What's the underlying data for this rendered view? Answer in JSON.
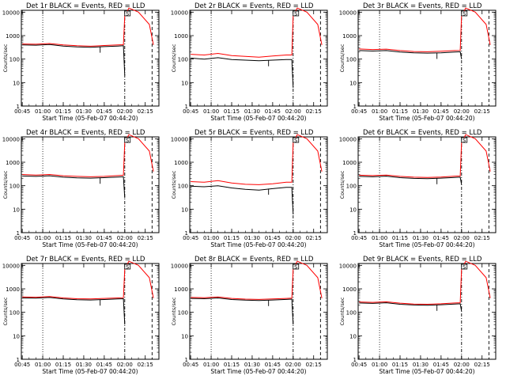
{
  "panels_common": {
    "xlabel": "Start Time (05-Feb-07 00:44:20)",
    "ylabel": "Counts/sec",
    "x_ticks": [
      "00:45",
      "01:00",
      "01:15",
      "01:30",
      "01:45",
      "02:00",
      "02:15"
    ],
    "y_ticks": [
      "1",
      "10",
      "100",
      "1000",
      "10000"
    ]
  },
  "chart_data": [
    {
      "type": "line",
      "title": "Det 1r BLACK = Events, RED = LLD",
      "xlabel": "Start Time (05-Feb-07 00:44:20)",
      "ylabel": "Counts/sec",
      "yscale": "log",
      "ylim": [
        1,
        10000
      ],
      "xlim": [
        "00:44",
        "02:25"
      ],
      "vlines": {
        "dotted": "01:00",
        "dash_dot": "02:00",
        "dashed": "02:20"
      },
      "marker_label": "S",
      "marker_time": "02:02",
      "series": [
        {
          "name": "Events",
          "color": "#000000",
          "x": [
            "00:45",
            "00:55",
            "01:05",
            "01:15",
            "01:25",
            "01:35",
            "01:45",
            "01:55",
            "01:59",
            "02:00"
          ],
          "values": [
            400,
            390,
            420,
            360,
            330,
            320,
            340,
            360,
            370,
            20
          ]
        },
        {
          "name": "LLD",
          "color": "#ff0000",
          "x": [
            "00:45",
            "00:55",
            "01:05",
            "01:15",
            "01:25",
            "01:35",
            "01:45",
            "01:55",
            "01:59",
            "02:00",
            "02:03",
            "02:10",
            "02:18",
            "02:21"
          ],
          "values": [
            440,
            430,
            460,
            400,
            370,
            355,
            380,
            400,
            410,
            7000,
            15000,
            10000,
            3000,
            400
          ]
        }
      ]
    },
    {
      "type": "line",
      "title": "Det 2r BLACK = Events, RED = LLD",
      "xlabel": "Start Time (05-Feb-07 00:44:20)",
      "ylabel": "Counts/sec",
      "yscale": "log",
      "ylim": [
        1,
        10000
      ],
      "xlim": [
        "00:44",
        "02:25"
      ],
      "vlines": {
        "dotted": "01:00",
        "dash_dot": "02:00",
        "dashed": "02:20"
      },
      "marker_label": "S",
      "marker_time": "02:02",
      "series": [
        {
          "name": "Events",
          "color": "#000000",
          "x": [
            "00:45",
            "00:55",
            "01:05",
            "01:15",
            "01:25",
            "01:35",
            "01:45",
            "01:55",
            "01:59",
            "02:00"
          ],
          "values": [
            110,
            100,
            115,
            95,
            90,
            85,
            90,
            95,
            95,
            6
          ]
        },
        {
          "name": "LLD",
          "color": "#ff0000",
          "x": [
            "00:45",
            "00:55",
            "01:05",
            "01:15",
            "01:25",
            "01:35",
            "01:45",
            "01:55",
            "01:59",
            "02:00",
            "02:03",
            "02:10",
            "02:18",
            "02:21"
          ],
          "values": [
            160,
            150,
            175,
            140,
            130,
            120,
            135,
            150,
            150,
            7000,
            15000,
            10000,
            3000,
            400
          ]
        }
      ]
    },
    {
      "type": "line",
      "title": "Det 3r BLACK = Events, RED = LLD",
      "xlabel": "Start Time (05-Feb-07 00:44:20)",
      "ylabel": "Counts/sec",
      "yscale": "log",
      "ylim": [
        1,
        10000
      ],
      "xlim": [
        "00:44",
        "02:25"
      ],
      "vlines": {
        "dotted": "01:00",
        "dash_dot": "02:00",
        "dashed": "02:20"
      },
      "marker_label": "S",
      "marker_time": "02:02",
      "series": [
        {
          "name": "Events",
          "color": "#000000",
          "x": [
            "00:45",
            "00:55",
            "01:05",
            "01:15",
            "01:25",
            "01:35",
            "01:45",
            "01:55",
            "01:59",
            "02:00"
          ],
          "values": [
            230,
            220,
            230,
            200,
            185,
            180,
            185,
            200,
            205,
            100
          ]
        },
        {
          "name": "LLD",
          "color": "#ff0000",
          "x": [
            "00:45",
            "00:55",
            "01:05",
            "01:15",
            "01:25",
            "01:35",
            "01:45",
            "01:55",
            "01:59",
            "02:00",
            "02:03",
            "02:10",
            "02:18",
            "02:21"
          ],
          "values": [
            270,
            255,
            265,
            230,
            210,
            205,
            215,
            230,
            235,
            7000,
            15000,
            10000,
            3000,
            400
          ]
        }
      ]
    },
    {
      "type": "line",
      "title": "Det 4r BLACK = Events, RED = LLD",
      "xlabel": "Start Time (05-Feb-07 00:44:20)",
      "ylabel": "Counts/sec",
      "yscale": "log",
      "ylim": [
        1,
        10000
      ],
      "xlim": [
        "00:44",
        "02:25"
      ],
      "vlines": {
        "dotted": "01:00",
        "dash_dot": "02:00",
        "dashed": "02:20"
      },
      "marker_label": "S",
      "marker_time": "02:02",
      "series": [
        {
          "name": "Events",
          "color": "#000000",
          "x": [
            "00:45",
            "00:55",
            "01:05",
            "01:15",
            "01:25",
            "01:35",
            "01:45",
            "01:55",
            "01:59",
            "02:00"
          ],
          "values": [
            260,
            250,
            265,
            230,
            215,
            210,
            220,
            235,
            240,
            30
          ]
        },
        {
          "name": "LLD",
          "color": "#ff0000",
          "x": [
            "00:45",
            "00:55",
            "01:05",
            "01:15",
            "01:25",
            "01:35",
            "01:45",
            "01:55",
            "01:59",
            "02:00",
            "02:03",
            "02:10",
            "02:18",
            "02:21"
          ],
          "values": [
            300,
            285,
            300,
            265,
            250,
            240,
            250,
            270,
            280,
            7000,
            15000,
            10000,
            3000,
            400
          ]
        }
      ]
    },
    {
      "type": "line",
      "title": "Det 5r BLACK = Events, RED = LLD",
      "xlabel": "Start Time (05-Feb-07 00:44:20)",
      "ylabel": "Counts/sec",
      "yscale": "log",
      "ylim": [
        1,
        10000
      ],
      "xlim": [
        "00:44",
        "02:25"
      ],
      "vlines": {
        "dotted": "01:00",
        "dash_dot": "02:00",
        "dashed": "02:20"
      },
      "marker_label": "S",
      "marker_time": "02:02",
      "series": [
        {
          "name": "Events",
          "color": "#000000",
          "x": [
            "00:45",
            "00:55",
            "01:05",
            "01:15",
            "01:25",
            "01:35",
            "01:45",
            "01:55",
            "01:59",
            "02:00"
          ],
          "values": [
            95,
            90,
            100,
            80,
            70,
            65,
            75,
            85,
            85,
            6
          ]
        },
        {
          "name": "LLD",
          "color": "#ff0000",
          "x": [
            "00:45",
            "00:55",
            "01:05",
            "01:15",
            "01:25",
            "01:35",
            "01:45",
            "01:55",
            "01:59",
            "02:00",
            "02:03",
            "02:10",
            "02:18",
            "02:21"
          ],
          "values": [
            150,
            140,
            165,
            130,
            115,
            110,
            120,
            140,
            140,
            7000,
            15000,
            10000,
            3000,
            400
          ]
        }
      ]
    },
    {
      "type": "line",
      "title": "Det 6r BLACK = Events, RED = LLD",
      "xlabel": "Start Time (05-Feb-07 00:44:20)",
      "ylabel": "Counts/sec",
      "yscale": "log",
      "ylim": [
        1,
        10000
      ],
      "xlim": [
        "00:44",
        "02:25"
      ],
      "vlines": {
        "dotted": "01:00",
        "dash_dot": "02:00",
        "dashed": "02:20"
      },
      "marker_label": "S",
      "marker_time": "02:02",
      "series": [
        {
          "name": "Events",
          "color": "#000000",
          "x": [
            "00:45",
            "00:55",
            "01:05",
            "01:15",
            "01:25",
            "01:35",
            "01:45",
            "01:55",
            "01:59",
            "02:00"
          ],
          "values": [
            250,
            240,
            255,
            220,
            205,
            200,
            210,
            225,
            230,
            110
          ]
        },
        {
          "name": "LLD",
          "color": "#ff0000",
          "x": [
            "00:45",
            "00:55",
            "01:05",
            "01:15",
            "01:25",
            "01:35",
            "01:45",
            "01:55",
            "01:59",
            "02:00",
            "02:03",
            "02:10",
            "02:18",
            "02:21"
          ],
          "values": [
            280,
            270,
            285,
            250,
            230,
            225,
            235,
            255,
            260,
            7000,
            15000,
            10000,
            3000,
            400
          ]
        }
      ]
    },
    {
      "type": "line",
      "title": "Det 7r BLACK = Events, RED = LLD",
      "xlabel": "Start Time (05-Feb-07 00:44:20)",
      "ylabel": "Counts/sec",
      "yscale": "log",
      "ylim": [
        1,
        10000
      ],
      "xlim": [
        "00:44",
        "02:25"
      ],
      "vlines": {
        "dotted": "01:00",
        "dash_dot": "02:00",
        "dashed": "02:20"
      },
      "marker_label": "S",
      "marker_time": "02:02",
      "series": [
        {
          "name": "Events",
          "color": "#000000",
          "x": [
            "00:45",
            "00:55",
            "01:05",
            "01:15",
            "01:25",
            "01:35",
            "01:45",
            "01:55",
            "01:59",
            "02:00"
          ],
          "values": [
            410,
            400,
            430,
            370,
            345,
            335,
            350,
            370,
            380,
            30
          ]
        },
        {
          "name": "LLD",
          "color": "#ff0000",
          "x": [
            "00:45",
            "00:55",
            "01:05",
            "01:15",
            "01:25",
            "01:35",
            "01:45",
            "01:55",
            "01:59",
            "02:00",
            "02:03",
            "02:10",
            "02:18",
            "02:21"
          ],
          "values": [
            450,
            440,
            470,
            410,
            380,
            370,
            390,
            410,
            420,
            7000,
            15000,
            10000,
            3000,
            400
          ]
        }
      ]
    },
    {
      "type": "line",
      "title": "Det 8r BLACK = Events, RED = LLD",
      "xlabel": "Start Time (05-Feb-07 00:44:20)",
      "ylabel": "Counts/sec",
      "yscale": "log",
      "ylim": [
        1,
        10000
      ],
      "xlim": [
        "00:44",
        "02:25"
      ],
      "vlines": {
        "dotted": "01:00",
        "dash_dot": "02:00",
        "dashed": "02:20"
      },
      "marker_label": "S",
      "marker_time": "02:02",
      "series": [
        {
          "name": "Events",
          "color": "#000000",
          "x": [
            "00:45",
            "00:55",
            "01:05",
            "01:15",
            "01:25",
            "01:35",
            "01:45",
            "01:55",
            "01:59",
            "02:00"
          ],
          "values": [
            390,
            380,
            410,
            350,
            330,
            320,
            335,
            355,
            365,
            30
          ]
        },
        {
          "name": "LLD",
          "color": "#ff0000",
          "x": [
            "00:45",
            "00:55",
            "01:05",
            "01:15",
            "01:25",
            "01:35",
            "01:45",
            "01:55",
            "01:59",
            "02:00",
            "02:03",
            "02:10",
            "02:18",
            "02:21"
          ],
          "values": [
            430,
            420,
            450,
            390,
            365,
            355,
            370,
            390,
            400,
            7000,
            15000,
            10000,
            3000,
            400
          ]
        }
      ]
    },
    {
      "type": "line",
      "title": "Det 9r BLACK = Events, RED = LLD",
      "xlabel": "Start Time (05-Feb-07 00:44:20)",
      "ylabel": "Counts/sec",
      "yscale": "log",
      "ylim": [
        1,
        10000
      ],
      "xlim": [
        "00:44",
        "02:25"
      ],
      "vlines": {
        "dotted": "01:00",
        "dash_dot": "02:00",
        "dashed": "02:20"
      },
      "marker_label": "S",
      "marker_time": "02:02",
      "series": [
        {
          "name": "Events",
          "color": "#000000",
          "x": [
            "00:45",
            "00:55",
            "01:05",
            "01:15",
            "01:25",
            "01:35",
            "01:45",
            "01:55",
            "01:59",
            "02:00"
          ],
          "values": [
            250,
            240,
            255,
            220,
            205,
            200,
            210,
            225,
            230,
            110
          ]
        },
        {
          "name": "LLD",
          "color": "#ff0000",
          "x": [
            "00:45",
            "00:55",
            "01:05",
            "01:15",
            "01:25",
            "01:35",
            "01:45",
            "01:55",
            "01:59",
            "02:00",
            "02:03",
            "02:10",
            "02:18",
            "02:21"
          ],
          "values": [
            275,
            265,
            280,
            245,
            225,
            220,
            230,
            250,
            255,
            7000,
            15000,
            10000,
            3000,
            400
          ]
        }
      ]
    }
  ]
}
